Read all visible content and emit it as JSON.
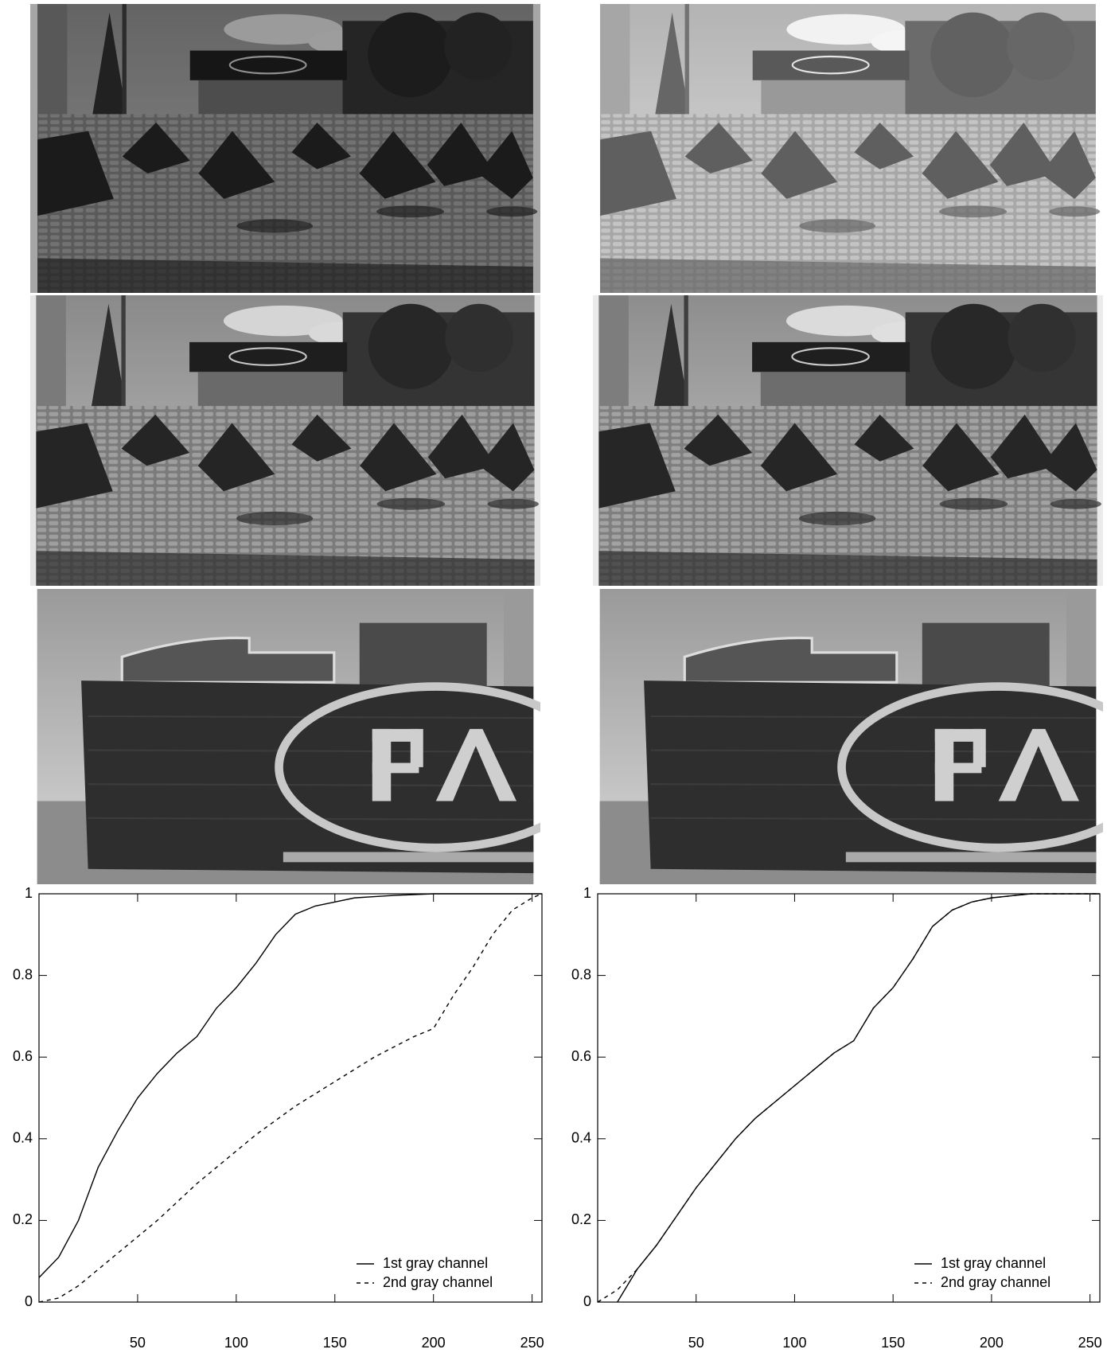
{
  "chart_data": [
    {
      "type": "line",
      "xlim": [
        0,
        255
      ],
      "ylim": [
        0,
        1
      ],
      "xticks": [
        50,
        100,
        150,
        200,
        250
      ],
      "yticks": [
        0,
        0.2,
        0.4,
        0.6,
        0.8,
        1
      ],
      "legend": "lower right",
      "x": [
        0,
        10,
        20,
        30,
        40,
        50,
        60,
        70,
        80,
        90,
        100,
        110,
        120,
        130,
        140,
        150,
        160,
        170,
        180,
        190,
        200,
        210,
        220,
        230,
        240,
        250,
        255
      ],
      "series": [
        {
          "name": "1st gray channel",
          "color": "#000000",
          "dash": false,
          "values": [
            0.06,
            0.11,
            0.2,
            0.33,
            0.42,
            0.5,
            0.56,
            0.61,
            0.65,
            0.72,
            0.77,
            0.83,
            0.9,
            0.95,
            0.97,
            0.98,
            0.99,
            0.993,
            0.996,
            0.998,
            1,
            1,
            1,
            1,
            1,
            1,
            1
          ]
        },
        {
          "name": "2nd gray channel",
          "color": "#000000",
          "dash": true,
          "values": [
            0,
            0.01,
            0.04,
            0.08,
            0.12,
            0.16,
            0.2,
            0.245,
            0.29,
            0.33,
            0.37,
            0.41,
            0.445,
            0.48,
            0.51,
            0.54,
            0.57,
            0.6,
            0.625,
            0.65,
            0.67,
            0.75,
            0.82,
            0.9,
            0.96,
            0.99,
            1
          ]
        }
      ]
    },
    {
      "type": "line",
      "xlim": [
        0,
        255
      ],
      "ylim": [
        0,
        1
      ],
      "xticks": [
        50,
        100,
        150,
        200,
        250
      ],
      "yticks": [
        0,
        0.2,
        0.4,
        0.6,
        0.8,
        1
      ],
      "legend": "lower right",
      "x": [
        0,
        10,
        20,
        30,
        40,
        50,
        60,
        70,
        80,
        90,
        100,
        110,
        120,
        130,
        140,
        150,
        160,
        170,
        180,
        190,
        200,
        210,
        220,
        230,
        240,
        250,
        255
      ],
      "series": [
        {
          "name": "1st gray channel",
          "color": "#000000",
          "dash": false,
          "values": [
            null,
            0,
            0.08,
            0.14,
            0.21,
            0.28,
            0.34,
            0.4,
            0.45,
            0.49,
            0.53,
            0.57,
            0.61,
            0.64,
            0.72,
            0.77,
            0.84,
            0.92,
            0.96,
            0.98,
            0.99,
            0.995,
            1,
            1,
            1,
            1,
            1
          ]
        },
        {
          "name": "2nd gray channel",
          "color": "#000000",
          "dash": true,
          "values": [
            0,
            0.03,
            0.08,
            0.14,
            0.21,
            0.28,
            0.34,
            0.4,
            0.45,
            0.49,
            0.53,
            0.57,
            0.61,
            0.64,
            0.72,
            0.77,
            0.84,
            0.92,
            0.96,
            0.98,
            0.99,
            0.995,
            1,
            1,
            1,
            1,
            1
          ]
        }
      ]
    }
  ]
}
